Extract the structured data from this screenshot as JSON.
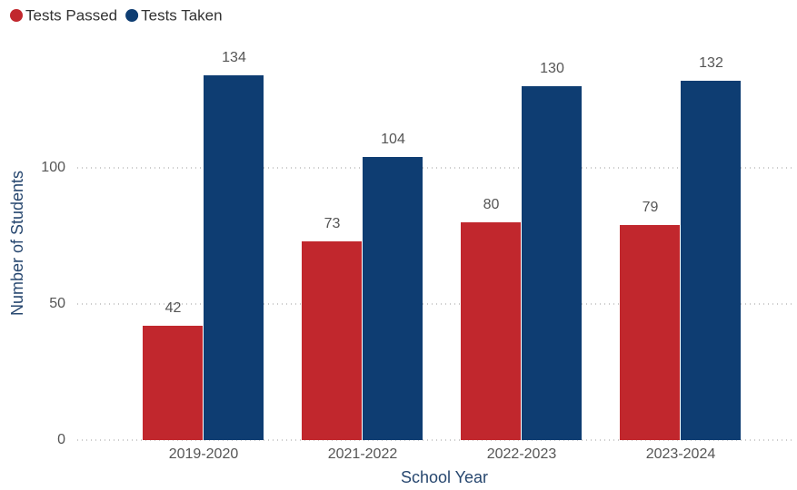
{
  "chart_data": {
    "type": "bar",
    "categories": [
      "2019-2020",
      "2021-2022",
      "2022-2023",
      "2023-2024"
    ],
    "series": [
      {
        "name": "Tests Passed",
        "color": "#c1272d",
        "values": [
          42,
          73,
          80,
          79
        ]
      },
      {
        "name": "Tests Taken",
        "color": "#0e3d72",
        "values": [
          134,
          104,
          130,
          132
        ]
      }
    ],
    "x_label": "School Year",
    "y_label": "Number of Students",
    "ylim": [
      0,
      150
    ],
    "yticks": [
      0,
      50,
      100
    ],
    "grid": true,
    "legend": "top-left"
  }
}
